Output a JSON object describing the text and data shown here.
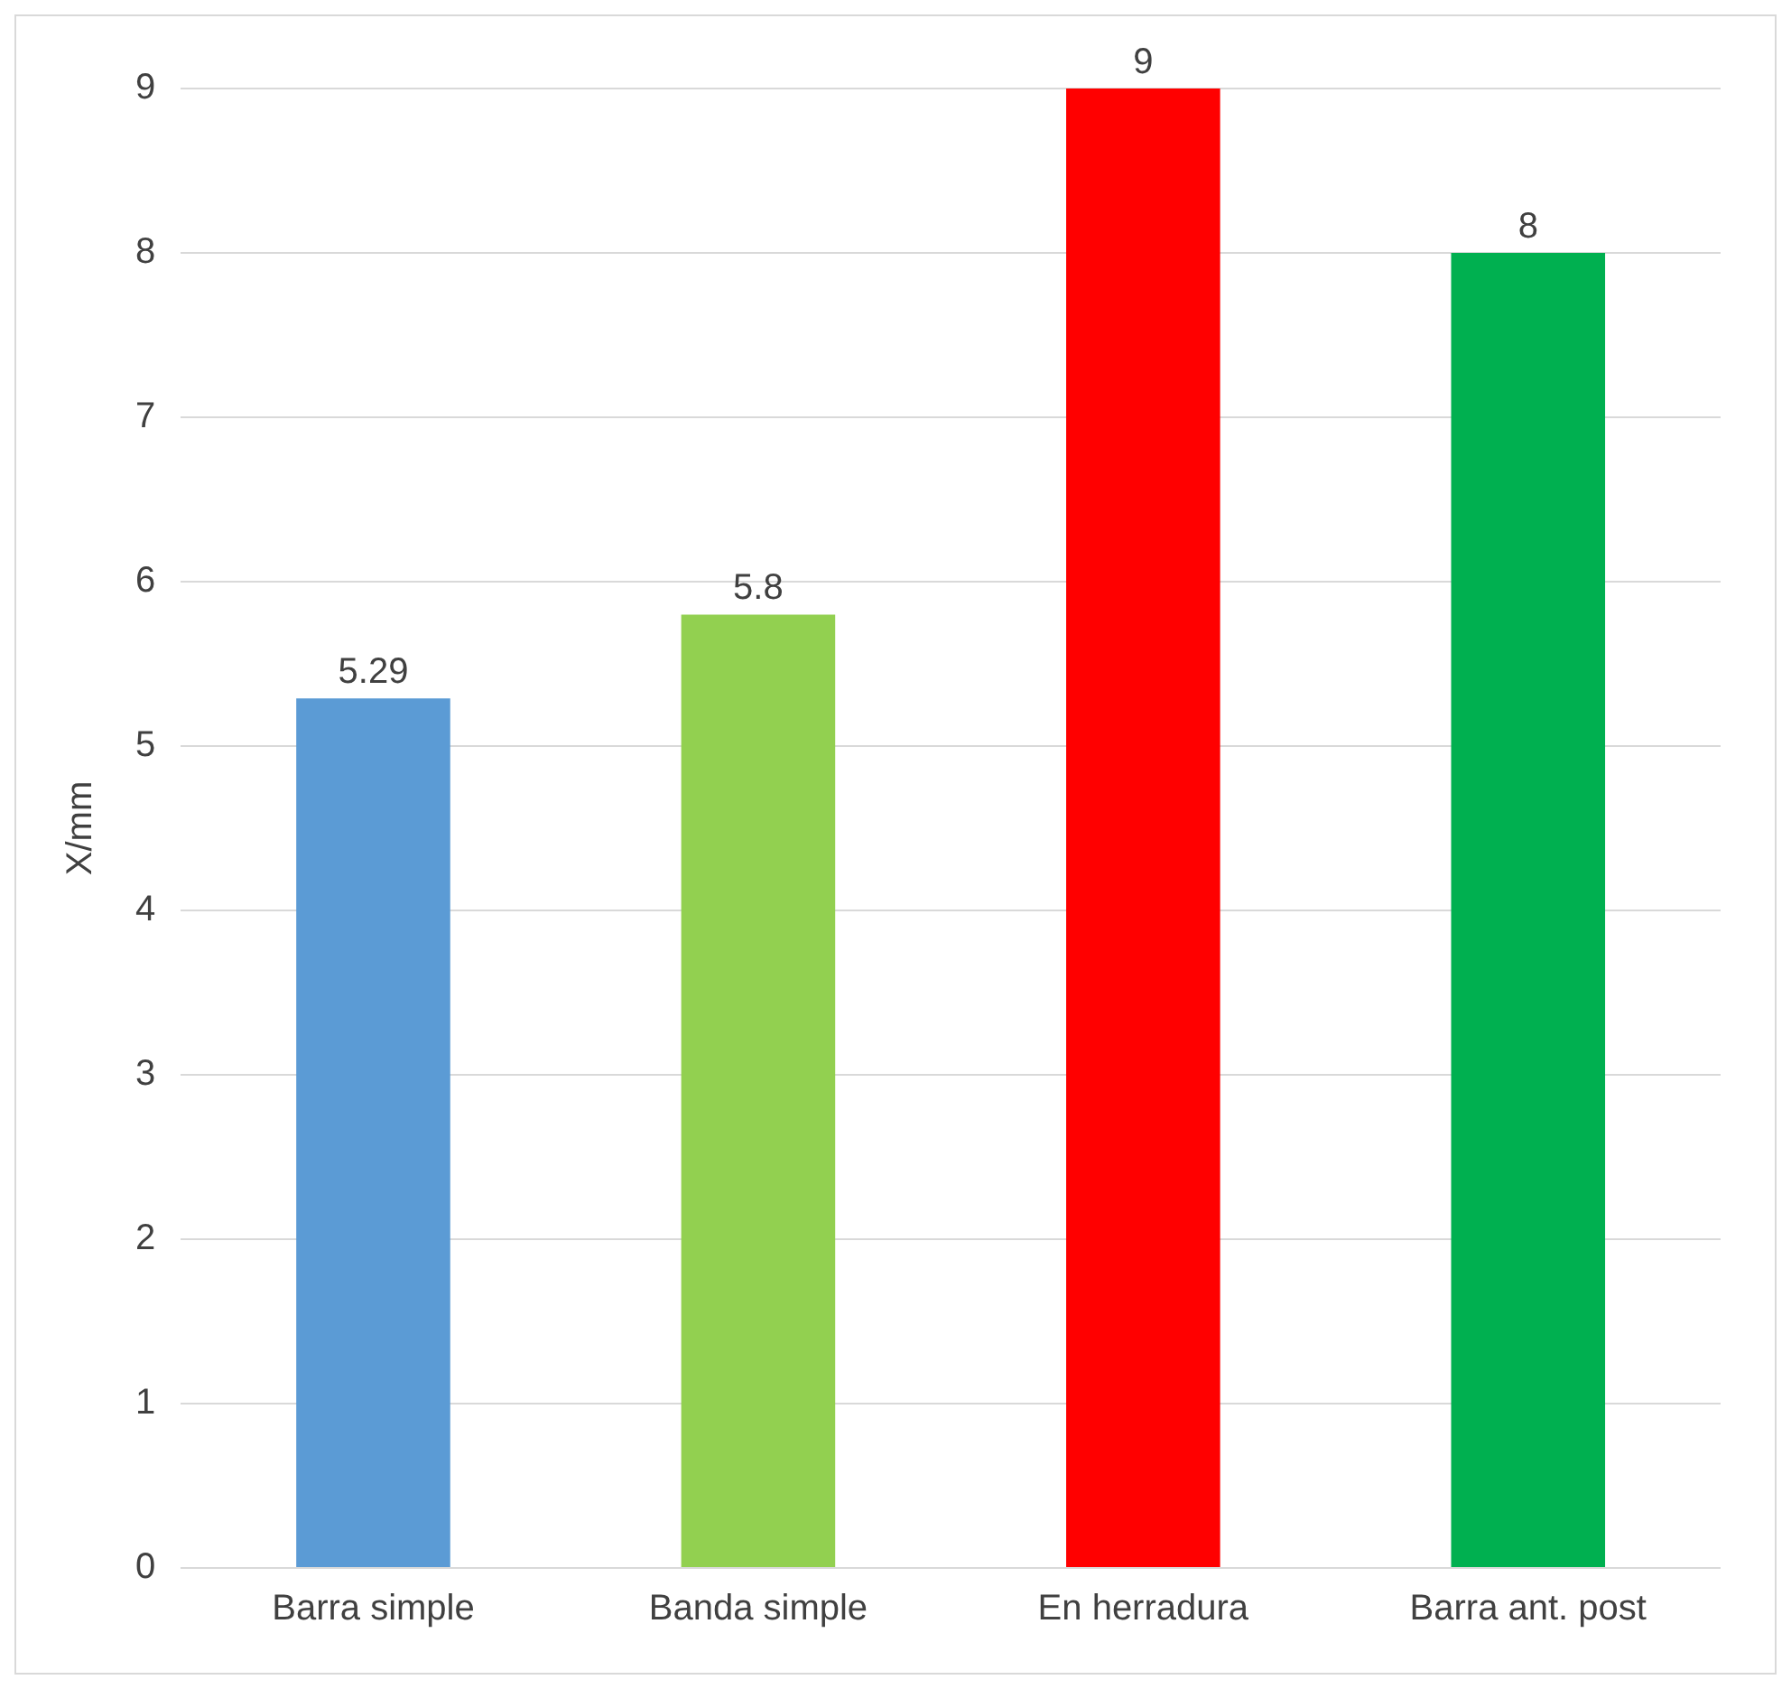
{
  "chart_data": {
    "type": "bar",
    "ylabel": "X/mm",
    "categories": [
      "Barra simple",
      "Banda simple",
      "En herradura",
      "Barra ant. post"
    ],
    "values": [
      5.29,
      5.8,
      9,
      8
    ],
    "colors": [
      "#5b9bd5",
      "#92d050",
      "#ff0000",
      "#00b050"
    ],
    "ylim": [
      0,
      9
    ],
    "yticks": [
      0,
      1,
      2,
      3,
      4,
      5,
      6,
      7,
      8,
      9
    ],
    "grid": "y",
    "data_labels": true
  }
}
